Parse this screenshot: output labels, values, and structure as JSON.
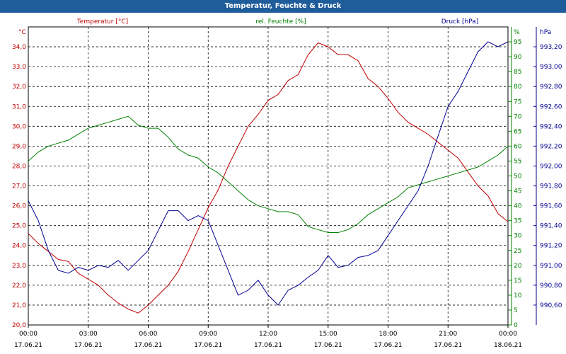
{
  "window": {
    "title": "Temperatur, Feuchte & Druck"
  },
  "chart_data": {
    "type": "line",
    "title": "Temperatur, Feuchte & Druck",
    "grid": true,
    "x_ticks": [
      {
        "x": 0,
        "time": "00:00",
        "date": "17.06.21"
      },
      {
        "x": 3,
        "time": "03:00",
        "date": "17.06.21"
      },
      {
        "x": 6,
        "time": "06:00",
        "date": "17.06.21"
      },
      {
        "x": 9,
        "time": "09:00",
        "date": "17.06.21"
      },
      {
        "x": 12,
        "time": "12:00",
        "date": "17.06.21"
      },
      {
        "x": 15,
        "time": "15:00",
        "date": "17.06.21"
      },
      {
        "x": 18,
        "time": "18:00",
        "date": "17.06.21"
      },
      {
        "x": 21,
        "time": "21:00",
        "date": "17.06.21"
      },
      {
        "x": 24,
        "time": "00:00",
        "date": "18.06.21"
      }
    ],
    "xlim": [
      0,
      24
    ],
    "axes": {
      "temperature": {
        "unit": "°C",
        "color": "#c00000",
        "range": [
          20,
          35
        ],
        "ticks": [
          "20,0",
          "21,0",
          "22,0",
          "23,0",
          "24,0",
          "25,0",
          "26,0",
          "27,0",
          "28,0",
          "29,0",
          "30,0",
          "31,0",
          "32,0",
          "33,0",
          "34,0"
        ]
      },
      "humidity": {
        "unit": "%",
        "color": "#008000",
        "range": [
          0,
          100
        ],
        "ticks": [
          "0",
          "5",
          "10",
          "15",
          "20",
          "25",
          "30",
          "35",
          "40",
          "45",
          "50",
          "55",
          "60",
          "65",
          "70",
          "75",
          "80",
          "85",
          "90",
          "95"
        ]
      },
      "pressure": {
        "unit": "hPa",
        "color": "#000090",
        "range": [
          990.4,
          993.4
        ],
        "ticks": [
          "990,60",
          "990,80",
          "991,00",
          "991,20",
          "991,40",
          "991,60",
          "991,80",
          "992,00",
          "992,20",
          "992,40",
          "992,60",
          "992,80",
          "993,00",
          "993,20"
        ]
      }
    },
    "series": [
      {
        "name": "Temperatur [°C]",
        "axis": "temperature",
        "color": "#c00000",
        "x": [
          0,
          0.5,
          1,
          1.5,
          2,
          2.5,
          3,
          3.5,
          4,
          4.5,
          5,
          5.5,
          6,
          6.5,
          7,
          7.5,
          8,
          8.5,
          9,
          9.5,
          10,
          10.5,
          11,
          11.5,
          12,
          12.5,
          13,
          13.5,
          14,
          14.5,
          15,
          15.5,
          16,
          16.5,
          17,
          17.5,
          18,
          18.5,
          19,
          19.5,
          20,
          20.5,
          21,
          21.5,
          22,
          22.5,
          23,
          23.5,
          24
        ],
        "values": [
          24.6,
          24.1,
          23.7,
          23.3,
          23.2,
          22.6,
          22.3,
          22.0,
          21.5,
          21.1,
          20.8,
          20.6,
          21.0,
          21.5,
          22.0,
          22.7,
          23.7,
          24.8,
          25.9,
          26.8,
          28.0,
          29.0,
          30.0,
          30.6,
          31.3,
          31.6,
          32.3,
          32.6,
          33.6,
          34.2,
          34.0,
          33.6,
          33.6,
          33.3,
          32.4,
          32.0,
          31.4,
          30.7,
          30.2,
          29.9,
          29.6,
          29.2,
          28.8,
          28.4,
          27.7,
          27.0,
          26.5,
          25.6,
          25.2
        ]
      },
      {
        "name": "rel. Feuchte [%]",
        "axis": "humidity",
        "color": "#008000",
        "x": [
          0,
          0.5,
          1,
          1.5,
          2,
          2.5,
          3,
          3.5,
          4,
          4.5,
          5,
          5.5,
          6,
          6.5,
          7,
          7.5,
          8,
          8.5,
          9,
          9.5,
          10,
          10.5,
          11,
          11.5,
          12,
          12.5,
          13,
          13.5,
          14,
          14.5,
          15,
          15.5,
          16,
          16.5,
          17,
          17.5,
          18,
          18.5,
          19,
          19.5,
          20,
          20.5,
          21,
          21.5,
          22,
          22.5,
          23,
          23.5,
          24
        ],
        "values": [
          55,
          58,
          60,
          61,
          62,
          64,
          66,
          67,
          68,
          69,
          70,
          67,
          66,
          66,
          63,
          59,
          57,
          56,
          53,
          51,
          48,
          45,
          42,
          40,
          39,
          38,
          38,
          37,
          33,
          32,
          31,
          31,
          32,
          34,
          37,
          39,
          41,
          43,
          46,
          47,
          48,
          49,
          50,
          51,
          52,
          53,
          55,
          57,
          60
        ]
      },
      {
        "name": "Druck [hPa]",
        "axis": "pressure",
        "color": "#000090",
        "x": [
          0,
          0.5,
          1,
          1.5,
          2,
          2.5,
          3,
          3.5,
          4,
          4.5,
          5,
          5.5,
          6,
          6.5,
          7,
          7.5,
          8,
          8.5,
          9,
          9.5,
          10,
          10.5,
          11,
          11.5,
          12,
          12.5,
          13,
          13.5,
          14,
          14.5,
          15,
          15.5,
          16,
          16.5,
          17,
          17.5,
          18,
          18.5,
          19,
          19.5,
          20,
          20.5,
          21,
          21.5,
          22,
          22.5,
          23,
          23.5,
          24
        ],
        "values": [
          991.65,
          991.45,
          991.15,
          990.95,
          990.92,
          990.98,
          990.95,
          991.0,
          990.98,
          991.05,
          990.95,
          991.05,
          991.15,
          991.35,
          991.55,
          991.55,
          991.45,
          991.5,
          991.45,
          991.2,
          990.95,
          990.7,
          990.75,
          990.85,
          990.7,
          990.6,
          990.75,
          990.8,
          990.88,
          990.95,
          991.1,
          990.98,
          991.0,
          991.08,
          991.1,
          991.15,
          991.3,
          991.45,
          991.6,
          991.75,
          992.0,
          992.3,
          992.6,
          992.75,
          992.95,
          993.15,
          993.25,
          993.2,
          993.25
        ]
      }
    ]
  }
}
